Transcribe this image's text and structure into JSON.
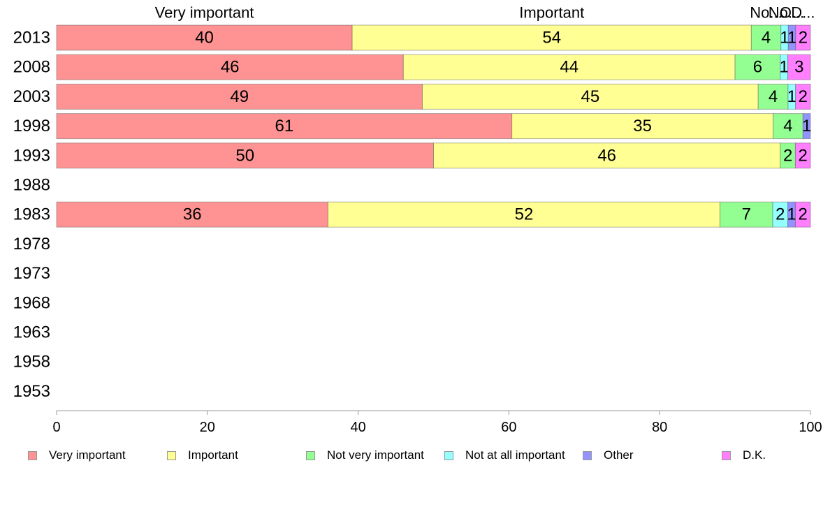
{
  "chart_data": {
    "type": "bar",
    "orientation": "horizontal",
    "stacked": true,
    "categories": [
      "2013",
      "2008",
      "2003",
      "1998",
      "1993",
      "1988",
      "1983",
      "1978",
      "1973",
      "1968",
      "1963",
      "1958",
      "1953"
    ],
    "series": [
      {
        "name": "Very important",
        "color": "#ff9393",
        "values": [
          40,
          46,
          49,
          61,
          50,
          null,
          36,
          null,
          null,
          null,
          null,
          null,
          null
        ]
      },
      {
        "name": "Important",
        "color": "#ffff93",
        "values": [
          54,
          44,
          45,
          35,
          46,
          null,
          52,
          null,
          null,
          null,
          null,
          null,
          null
        ]
      },
      {
        "name": "Not very important",
        "color": "#93ff93",
        "values": [
          4,
          6,
          4,
          4,
          2,
          null,
          7,
          null,
          null,
          null,
          null,
          null,
          null
        ]
      },
      {
        "name": "Not at all important",
        "color": "#93ffff",
        "values": [
          1,
          1,
          1,
          0,
          0,
          null,
          2,
          null,
          null,
          null,
          null,
          null,
          null
        ]
      },
      {
        "name": "Other",
        "color": "#9393ff",
        "values": [
          1,
          0,
          0,
          1,
          0,
          null,
          1,
          null,
          null,
          null,
          null,
          null,
          null
        ]
      },
      {
        "name": "D.K.",
        "color": "#ff7fff",
        "values": [
          2,
          3,
          2,
          0,
          2,
          null,
          2,
          null,
          null,
          null,
          null,
          null,
          null
        ]
      }
    ],
    "header_labels": [
      "Very important",
      "Important",
      "No...",
      "No...",
      "O...",
      "D..."
    ],
    "xlim": [
      0,
      100
    ],
    "xticks": [
      0,
      20,
      40,
      60,
      80,
      100
    ],
    "legend_position": "bottom",
    "grid": false
  }
}
